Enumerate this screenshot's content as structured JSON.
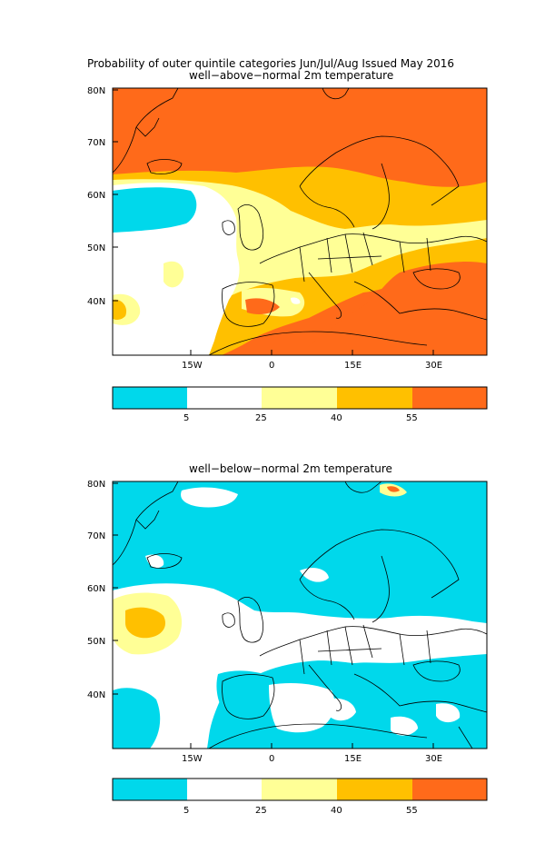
{
  "title_main": "Probability of outer quintile categories Jun/Jul/Aug Issued May 2016",
  "panels": [
    {
      "subtitle": "well−above−normal 2m temperature",
      "lat_labels": [
        "80N",
        "70N",
        "60N",
        "50N",
        "40N"
      ],
      "lon_labels": [
        "15W",
        "0",
        "15E",
        "30E"
      ]
    },
    {
      "subtitle": "well−below−normal 2m temperature",
      "lat_labels": [
        "80N",
        "70N",
        "60N",
        "50N",
        "40N"
      ],
      "lon_labels": [
        "15W",
        "0",
        "15E",
        "30E"
      ]
    }
  ],
  "colorbar": {
    "colors": [
      "#00d8eb",
      "#ffffff",
      "#ffff96",
      "#ffc000",
      "#ff6a1a"
    ],
    "tick_labels": [
      "5",
      "25",
      "40",
      "55"
    ]
  }
}
